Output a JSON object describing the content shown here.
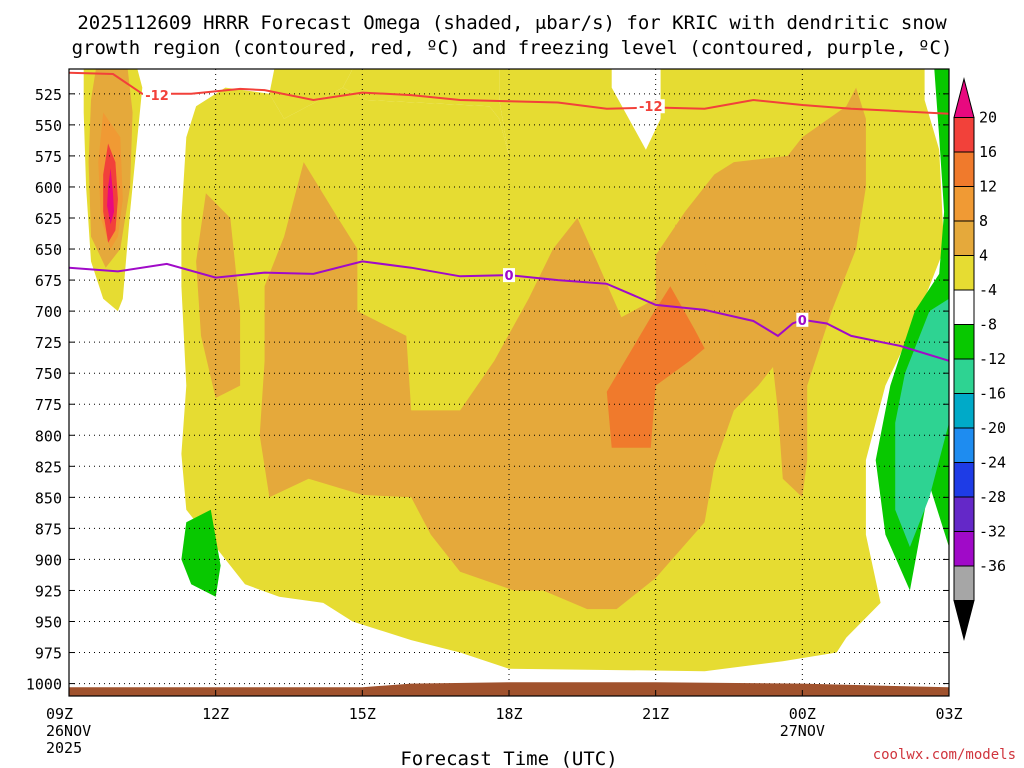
{
  "chart_data": {
    "type": "contour",
    "title_line1": "2025112609 HRRR Forecast Omega (shaded, μbar/s) for KRIC with dendritic snow",
    "title_line2": "growth region (contoured, red, ºC) and freezing level (contoured, purple, ºC)",
    "xlabel": "Forecast Time (UTC)",
    "credit": "coolwx.com/models",
    "x_range_hours": [
      0,
      18
    ],
    "y_range_mb": [
      1010,
      505
    ],
    "x_ticks": [
      {
        "hour": 0,
        "label": "09Z",
        "sub1": "26NOV",
        "sub2": "2025"
      },
      {
        "hour": 3,
        "label": "12Z",
        "sub1": "",
        "sub2": ""
      },
      {
        "hour": 6,
        "label": "15Z",
        "sub1": "",
        "sub2": ""
      },
      {
        "hour": 9,
        "label": "18Z",
        "sub1": "",
        "sub2": ""
      },
      {
        "hour": 12,
        "label": "21Z",
        "sub1": "",
        "sub2": ""
      },
      {
        "hour": 15,
        "label": "00Z",
        "sub1": "27NOV",
        "sub2": ""
      },
      {
        "hour": 18,
        "label": "03Z",
        "sub1": "",
        "sub2": ""
      }
    ],
    "y_ticks": [
      525,
      550,
      575,
      600,
      625,
      650,
      675,
      700,
      725,
      750,
      775,
      800,
      825,
      850,
      875,
      900,
      925,
      950,
      975,
      1000
    ],
    "colorbar": {
      "labels": [
        "20",
        "16",
        "12",
        "8",
        "4",
        "-4",
        "-8",
        "-12",
        "-16",
        "-20",
        "-24",
        "-28",
        "-32",
        "-36"
      ],
      "bins": [
        {
          "color": "#e8097f"
        },
        {
          "color": "#f2413a"
        },
        {
          "color": "#f07a2c"
        },
        {
          "color": "#f09a34"
        },
        {
          "color": "#e5a93b"
        },
        {
          "color": "#e6dc32"
        },
        {
          "color": "#ffffff"
        },
        {
          "color": "#08c800"
        },
        {
          "color": "#2ed392"
        },
        {
          "color": "#00aac8"
        },
        {
          "color": "#1e8cf0"
        },
        {
          "color": "#1e3ce6"
        },
        {
          "color": "#6428c8"
        },
        {
          "color": "#a00ac8"
        },
        {
          "color": "#a6a6a6"
        },
        {
          "color": "#000000"
        }
      ]
    },
    "omega_regions": [
      {
        "level": "4 to 8",
        "color": "#e6dc32",
        "points": [
          [
            0.3,
            505
          ],
          [
            1.4,
            505
          ],
          [
            1.5,
            520
          ],
          [
            1.4,
            560
          ],
          [
            1.25,
            620
          ],
          [
            1.1,
            690
          ],
          [
            1.0,
            700
          ],
          [
            0.7,
            690
          ],
          [
            0.45,
            660
          ],
          [
            0.35,
            600
          ],
          [
            0.3,
            540
          ]
        ]
      },
      {
        "level": "4 to 8",
        "color": "#e6dc32",
        "points": [
          [
            4.2,
            505
          ],
          [
            5.8,
            505
          ],
          [
            5.6,
            520
          ],
          [
            4.4,
            545
          ],
          [
            4.1,
            525
          ]
        ]
      },
      {
        "level": "4 to 8",
        "color": "#e6dc32",
        "points": [
          [
            5.8,
            505
          ],
          [
            8.8,
            505
          ],
          [
            8.8,
            530
          ],
          [
            9.0,
            575
          ],
          [
            8.8,
            545
          ],
          [
            8.6,
            535
          ],
          [
            6.1,
            530
          ],
          [
            5.6,
            520
          ]
        ]
      },
      {
        "level": "4 to 8",
        "color": "#e6dc32",
        "points": [
          [
            8.8,
            505
          ],
          [
            11.1,
            505
          ],
          [
            11.1,
            520
          ],
          [
            11.8,
            570
          ],
          [
            12.1,
            545
          ],
          [
            12.1,
            520
          ],
          [
            12.1,
            505
          ],
          [
            17.5,
            505
          ],
          [
            17.5,
            530
          ],
          [
            17.8,
            570
          ],
          [
            17.9,
            650
          ],
          [
            17.3,
            710
          ],
          [
            16.7,
            760
          ],
          [
            16.3,
            820
          ],
          [
            16.3,
            880
          ],
          [
            16.6,
            935
          ],
          [
            15.9,
            963
          ],
          [
            15.7,
            975
          ],
          [
            14.6,
            982
          ],
          [
            13.0,
            990
          ],
          [
            9.0,
            988
          ],
          [
            8.0,
            975
          ],
          [
            7.0,
            965
          ],
          [
            5.8,
            950
          ],
          [
            5.2,
            935
          ],
          [
            4.3,
            930
          ],
          [
            3.6,
            920
          ],
          [
            2.8,
            880
          ],
          [
            2.4,
            860
          ],
          [
            2.3,
            815
          ],
          [
            2.4,
            760
          ],
          [
            2.3,
            680
          ],
          [
            2.3,
            625
          ],
          [
            2.4,
            560
          ],
          [
            2.6,
            535
          ],
          [
            3.2,
            520
          ],
          [
            4.1,
            525
          ],
          [
            4.4,
            545
          ],
          [
            5.6,
            520
          ],
          [
            6.1,
            530
          ],
          [
            8.6,
            535
          ],
          [
            8.8,
            545
          ],
          [
            9.0,
            575
          ],
          [
            8.8,
            530
          ]
        ]
      },
      {
        "level": "8 to 12",
        "color": "#e5a93b",
        "points": [
          [
            0.55,
            505
          ],
          [
            1.2,
            505
          ],
          [
            1.3,
            540
          ],
          [
            1.25,
            600
          ],
          [
            1.05,
            650
          ],
          [
            0.75,
            665
          ],
          [
            0.45,
            640
          ],
          [
            0.4,
            580
          ],
          [
            0.45,
            530
          ]
        ]
      },
      {
        "level": "8 to 12",
        "color": "#e5a93b",
        "points": [
          [
            2.8,
            605
          ],
          [
            3.3,
            625
          ],
          [
            3.5,
            700
          ],
          [
            3.5,
            760
          ],
          [
            3.0,
            770
          ],
          [
            2.7,
            720
          ],
          [
            2.6,
            660
          ]
        ]
      },
      {
        "level": "8 to 12",
        "color": "#e5a93b",
        "points": [
          [
            4.8,
            580
          ],
          [
            5.5,
            625
          ],
          [
            5.9,
            650
          ],
          [
            5.9,
            700
          ],
          [
            6.9,
            720
          ],
          [
            7.0,
            780
          ],
          [
            8.0,
            780
          ],
          [
            8.7,
            740
          ],
          [
            9.4,
            690
          ],
          [
            9.9,
            650
          ],
          [
            10.4,
            625
          ],
          [
            10.8,
            660
          ],
          [
            11.3,
            705
          ],
          [
            12.0,
            690
          ],
          [
            12.0,
            655
          ],
          [
            12.6,
            620
          ],
          [
            13.2,
            590
          ],
          [
            13.6,
            580
          ],
          [
            14.7,
            575
          ],
          [
            15.0,
            560
          ],
          [
            15.9,
            535
          ],
          [
            16.1,
            520
          ],
          [
            16.3,
            545
          ],
          [
            16.3,
            600
          ],
          [
            16.1,
            650
          ],
          [
            15.6,
            700
          ],
          [
            15.1,
            760
          ],
          [
            15.1,
            820
          ],
          [
            15.0,
            850
          ],
          [
            14.6,
            835
          ],
          [
            14.5,
            780
          ],
          [
            14.4,
            745
          ],
          [
            14.1,
            760
          ],
          [
            13.6,
            780
          ],
          [
            13.2,
            825
          ],
          [
            13.0,
            870
          ],
          [
            12.0,
            915
          ],
          [
            11.2,
            940
          ],
          [
            10.6,
            940
          ],
          [
            9.7,
            925
          ],
          [
            9.1,
            925
          ],
          [
            8.0,
            910
          ],
          [
            7.4,
            880
          ],
          [
            7.0,
            850
          ],
          [
            6.0,
            848
          ],
          [
            4.9,
            835
          ],
          [
            4.1,
            850
          ],
          [
            3.9,
            800
          ],
          [
            4.0,
            740
          ],
          [
            4.0,
            680
          ],
          [
            4.4,
            640
          ]
        ]
      },
      {
        "level": "8 to 12",
        "color": "#e5a93b",
        "points": [
          [
            12.4,
            630
          ],
          [
            13.0,
            660
          ],
          [
            13.3,
            710
          ],
          [
            13.3,
            735
          ],
          [
            12.7,
            760
          ],
          [
            12.4,
            690
          ]
        ]
      },
      {
        "level": "12 to 16",
        "color": "#f09a34",
        "points": [
          [
            0.7,
            540
          ],
          [
            1.05,
            560
          ],
          [
            1.1,
            610
          ],
          [
            1.0,
            640
          ],
          [
            0.85,
            650
          ],
          [
            0.65,
            625
          ],
          [
            0.6,
            580
          ]
        ]
      },
      {
        "level": "12 to 16",
        "color": "#f07a2c",
        "points": [
          [
            11.9,
            705
          ],
          [
            12.3,
            680
          ],
          [
            12.8,
            715
          ],
          [
            13.0,
            730
          ],
          [
            12.7,
            740
          ],
          [
            12.0,
            760
          ],
          [
            11.9,
            810
          ],
          [
            11.1,
            810
          ],
          [
            11.0,
            765
          ],
          [
            11.3,
            745
          ]
        ]
      },
      {
        "level": "16 to 20",
        "color": "#f2413a",
        "points": [
          [
            0.8,
            565
          ],
          [
            0.95,
            580
          ],
          [
            1.0,
            610
          ],
          [
            0.95,
            635
          ],
          [
            0.8,
            645
          ],
          [
            0.7,
            620
          ],
          [
            0.7,
            590
          ]
        ]
      },
      {
        "level": ">20",
        "color": "#e8097f",
        "points": [
          [
            0.85,
            585
          ],
          [
            0.9,
            605
          ],
          [
            0.92,
            620
          ],
          [
            0.85,
            630
          ],
          [
            0.78,
            615
          ],
          [
            0.8,
            600
          ]
        ]
      },
      {
        "level": "-4 to -8",
        "color": "#08c800",
        "points": [
          [
            2.4,
            870
          ],
          [
            2.9,
            860
          ],
          [
            3.1,
            905
          ],
          [
            3.0,
            930
          ],
          [
            2.5,
            920
          ],
          [
            2.3,
            900
          ]
        ]
      },
      {
        "level": "-4 to -8",
        "color": "#08c800",
        "points": [
          [
            17.7,
            505
          ],
          [
            18.0,
            505
          ],
          [
            18.0,
            890
          ],
          [
            17.6,
            840
          ],
          [
            17.2,
            925
          ],
          [
            16.7,
            880
          ],
          [
            16.5,
            820
          ],
          [
            16.8,
            760
          ],
          [
            17.3,
            700
          ],
          [
            17.8,
            670
          ],
          [
            17.9,
            620
          ],
          [
            17.8,
            560
          ]
        ]
      },
      {
        "level": "-8 to -12",
        "color": "#2ed392",
        "points": [
          [
            17.6,
            700
          ],
          [
            18.0,
            690
          ],
          [
            18.0,
            790
          ],
          [
            17.6,
            850
          ],
          [
            17.2,
            890
          ],
          [
            16.9,
            860
          ],
          [
            16.9,
            790
          ],
          [
            17.1,
            750
          ],
          [
            17.4,
            720
          ]
        ]
      }
    ],
    "snow_growth_minus12": {
      "label": "-12",
      "points": [
        [
          0,
          508
        ],
        [
          0.9,
          509
        ],
        [
          1.5,
          525
        ],
        [
          2.5,
          525
        ],
        [
          3.5,
          521
        ],
        [
          4.0,
          522
        ],
        [
          5.0,
          530
        ],
        [
          6.0,
          524
        ],
        [
          7.0,
          526
        ],
        [
          8.0,
          530
        ],
        [
          9.0,
          531
        ],
        [
          10.0,
          532
        ],
        [
          11.0,
          537
        ],
        [
          12.0,
          536
        ],
        [
          13.0,
          537
        ],
        [
          14.0,
          530
        ],
        [
          15.0,
          534
        ],
        [
          16.0,
          537
        ],
        [
          17.0,
          539
        ],
        [
          18.0,
          541
        ]
      ],
      "label_positions": [
        [
          1.8,
          526
        ],
        [
          11.9,
          535
        ]
      ]
    },
    "freezing_level_0": {
      "label": "0",
      "points": [
        [
          0,
          665
        ],
        [
          1.0,
          668
        ],
        [
          2.0,
          662
        ],
        [
          3.0,
          673
        ],
        [
          4.0,
          669
        ],
        [
          5.0,
          670
        ],
        [
          6.0,
          660
        ],
        [
          7.0,
          665
        ],
        [
          8.0,
          672
        ],
        [
          9.0,
          671
        ],
        [
          10.0,
          675
        ],
        [
          11.0,
          678
        ],
        [
          12.0,
          695
        ],
        [
          13.0,
          699
        ],
        [
          14.0,
          708
        ],
        [
          14.5,
          720
        ],
        [
          14.8,
          710
        ],
        [
          15.0,
          707
        ],
        [
          15.5,
          710
        ],
        [
          16.0,
          720
        ],
        [
          17.0,
          728
        ],
        [
          18.0,
          740
        ]
      ],
      "label_positions": [
        [
          9.0,
          671
        ],
        [
          15.0,
          707
        ]
      ]
    }
  }
}
